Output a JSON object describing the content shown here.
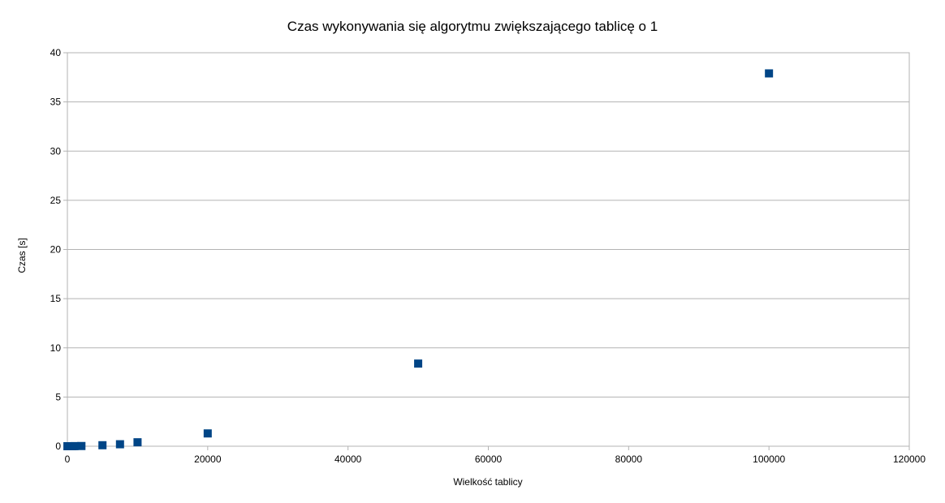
{
  "chart_data": {
    "type": "scatter",
    "title": "Czas wykonywania się algorytmu zwiększającego tablicę o 1",
    "xlabel": "Wielkość tablicy",
    "ylabel": "Czas [s]",
    "xlim": [
      0,
      120000
    ],
    "ylim": [
      0,
      40
    ],
    "x_ticks": [
      0,
      20000,
      40000,
      60000,
      80000,
      100000,
      120000
    ],
    "y_ticks": [
      0,
      5,
      10,
      15,
      20,
      25,
      30,
      35,
      40
    ],
    "grid": "horizontal",
    "legend": "none",
    "marker": "square",
    "series": [
      {
        "color": "#004586",
        "x": [
          10,
          50,
          100,
          200,
          500,
          750,
          1000,
          2000,
          5000,
          7500,
          10000,
          20000,
          50000,
          100000
        ],
        "y": [
          0,
          0,
          0,
          0,
          0,
          0,
          0.01,
          0.02,
          0.1,
          0.2,
          0.4,
          1.3,
          8.4,
          37.9
        ]
      }
    ]
  }
}
